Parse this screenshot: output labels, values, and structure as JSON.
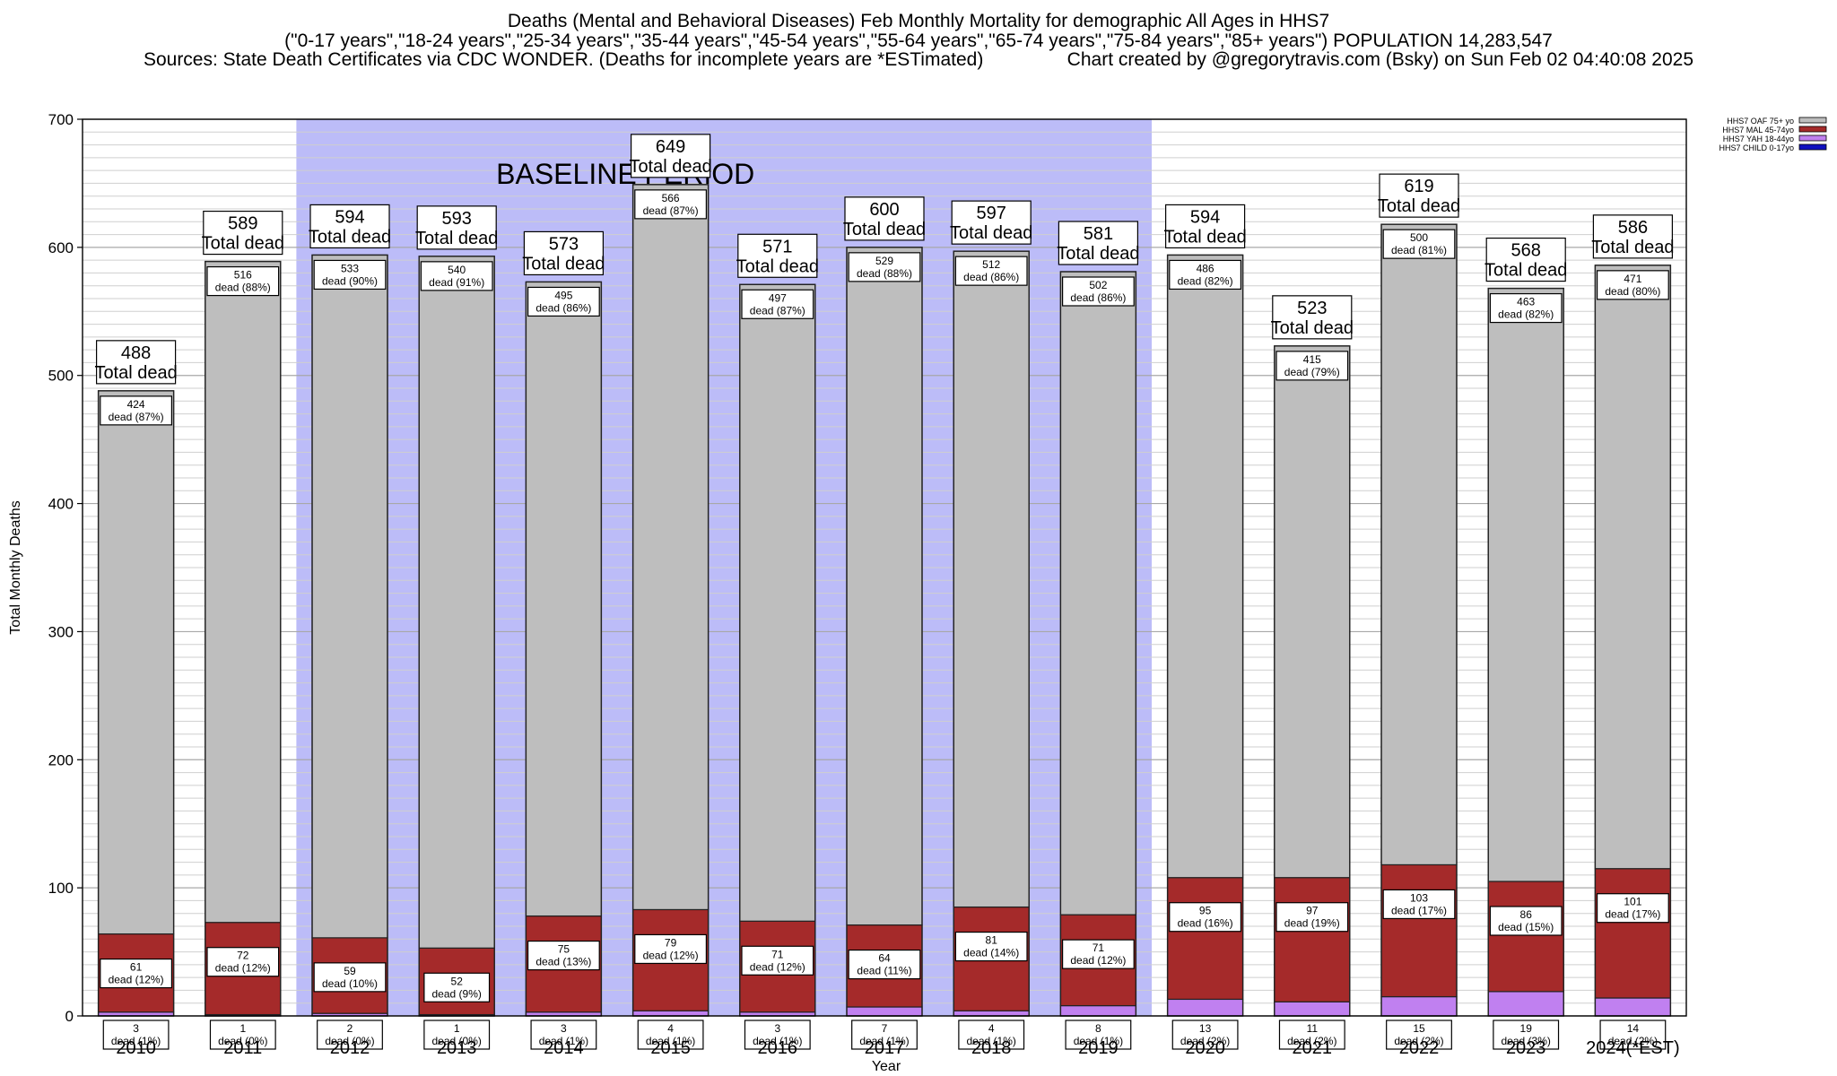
{
  "header": {
    "title_line1": "Deaths (Mental and Behavioral Diseases) Feb Monthly Mortality for demographic All Ages in HHS7",
    "title_line2": "(\"0-17 years\",\"18-24 years\",\"25-34 years\",\"35-44 years\",\"45-54 years\",\"55-64 years\",\"65-74 years\",\"75-84 years\",\"85+ years\") POPULATION 14,283,547",
    "title_line3": "Sources: State Death Certificates via CDC WONDER. (Deaths for incomplete years are *ESTimated)                Chart created by @gregorytravis.com (Bsky) on Sun Feb 02 04:40:08 2025"
  },
  "chart_data": {
    "type": "bar",
    "stacked": true,
    "xlabel": "Year",
    "ylabel": "Total Monthly Deaths",
    "ylim": [
      0,
      700
    ],
    "yticks": [
      0,
      100,
      200,
      300,
      400,
      500,
      600,
      700
    ],
    "grid": true,
    "legend_position": "top-right",
    "baseline_label": "BASELINE PERIOD",
    "baseline_range": [
      "2012",
      "2019"
    ],
    "categories": [
      "2010",
      "2011",
      "2012",
      "2013",
      "2014",
      "2015",
      "2016",
      "2017",
      "2018",
      "2019",
      "2020",
      "2021",
      "2022",
      "2023",
      "2024(*EST)"
    ],
    "series": [
      {
        "name": "HHS7 CHILD 0-17yo",
        "color": "#1010c0",
        "values": [
          0,
          0,
          0,
          0,
          0,
          0,
          0,
          0,
          0,
          0,
          0,
          0,
          0,
          0,
          0
        ],
        "labels": [
          "",
          "",
          "",
          "",
          "",
          "",
          "",
          "",
          "",
          "",
          "",
          "",
          "",
          "",
          ""
        ]
      },
      {
        "name": "HHS7 YAH 18-44yo",
        "color": "#c080f0",
        "values": [
          3,
          1,
          2,
          1,
          3,
          4,
          3,
          7,
          4,
          8,
          13,
          11,
          15,
          19,
          14
        ],
        "labels": [
          "3\ndead (1%)",
          "1\ndead (0%)",
          "2\ndead (0%)",
          "1\ndead (0%)",
          "3\ndead (1%)",
          "4\ndead (1%)",
          "3\ndead (1%)",
          "7\ndead (1%)",
          "4\ndead (1%)",
          "8\ndead (1%)",
          "13\ndead (2%)",
          "11\ndead (2%)",
          "15\ndead (2%)",
          "19\ndead (3%)",
          "14\ndead (2%)"
        ]
      },
      {
        "name": "HHS7 MAL 45-74yo",
        "color": "#a52a2a",
        "values": [
          61,
          72,
          59,
          52,
          75,
          79,
          71,
          64,
          81,
          71,
          95,
          97,
          103,
          86,
          101
        ],
        "labels": [
          "61\ndead (12%)",
          "72\ndead (12%)",
          "59\ndead (10%)",
          "52\ndead (9%)",
          "75\ndead (13%)",
          "79\ndead (12%)",
          "71\ndead (12%)",
          "64\ndead (11%)",
          "81\ndead (14%)",
          "71\ndead (12%)",
          "95\ndead (16%)",
          "97\ndead (19%)",
          "103\ndead (17%)",
          "86\ndead (15%)",
          "101\ndead (17%)"
        ]
      },
      {
        "name": "HHS7 OAF 75+ yo",
        "color": "#bebebe",
        "values": [
          424,
          516,
          533,
          540,
          495,
          566,
          497,
          529,
          512,
          502,
          486,
          415,
          500,
          463,
          471
        ],
        "labels": [
          "424\ndead (87%)",
          "516\ndead (88%)",
          "533\ndead (90%)",
          "540\ndead (91%)",
          "495\ndead (86%)",
          "566\ndead (87%)",
          "497\ndead (87%)",
          "529\ndead (88%)",
          "512\ndead (86%)",
          "502\ndead (86%)",
          "486\ndead (82%)",
          "415\ndead (79%)",
          "500\ndead (81%)",
          "463\ndead (82%)",
          "471\ndead (80%)"
        ]
      }
    ],
    "totals": [
      488,
      589,
      594,
      593,
      573,
      649,
      571,
      600,
      597,
      581,
      594,
      523,
      619,
      568,
      586
    ],
    "total_label": "Total dead"
  }
}
